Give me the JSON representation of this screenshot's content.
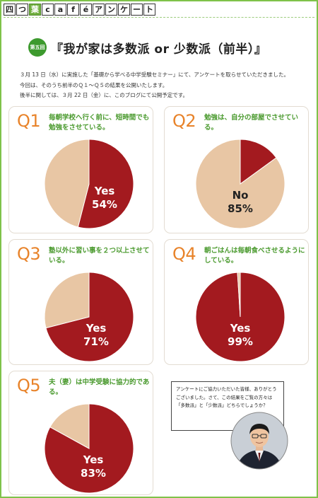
{
  "brand": {
    "chars": [
      "四",
      "つ",
      "葉",
      "c",
      "a",
      "f",
      "é",
      "ア",
      "ン",
      "ケ",
      "ー",
      "ト"
    ]
  },
  "title": {
    "badge": "第五回",
    "text": "『我が家は多数派 or 少数派（前半）』"
  },
  "intro": "３月 13 日（水）に実施した「基礎から学べる中学受験セミナー」にて、アンケートを取らせていただきました。\n今回は、そのうち前半のＱ１～Ｑ５の結果を公開いたします。\n後半に関しては、３月 22 日（金）に、このブログにて公開予定です。",
  "colors": {
    "yes": "#a31a1f",
    "no": "#e8c6a4",
    "accent": "#e8832a",
    "question": "#4a9a2e",
    "frame": "#7fc24a"
  },
  "questions": [
    {
      "no": "Q1",
      "text": "毎朝学校へ行く前に、短時間でも勉強をさせている。",
      "label": "Yes",
      "pct": "54%"
    },
    {
      "no": "Q2",
      "text": "勉強は、自分の部屋でさせている。",
      "label": "No",
      "pct": "85%"
    },
    {
      "no": "Q3",
      "text": "塾以外に習い事を２つ以上させている。",
      "label": "Yes",
      "pct": "71%"
    },
    {
      "no": "Q4",
      "text": "朝ごはんは毎朝食べさせるようにしている。",
      "label": "Yes",
      "pct": "99%"
    },
    {
      "no": "Q5",
      "text": "夫（妻）は中学受験に協力的である。",
      "label": "Yes",
      "pct": "83%"
    }
  ],
  "bubble": {
    "text": "アンケートにご協力いただいた皆様、ありがとうございました。さて、この結果をご覧の方々は「多数派」と「少数派」どちらでしょうか？"
  },
  "chart_data": [
    {
      "type": "pie",
      "title": "毎朝学校へ行く前に、短時間でも勉強をさせている。",
      "categories": [
        "Yes",
        "No"
      ],
      "values": [
        54,
        46
      ]
    },
    {
      "type": "pie",
      "title": "勉強は、自分の部屋でさせている。",
      "categories": [
        "Yes",
        "No"
      ],
      "values": [
        15,
        85
      ]
    },
    {
      "type": "pie",
      "title": "塾以外に習い事を２つ以上させている。",
      "categories": [
        "Yes",
        "No"
      ],
      "values": [
        71,
        29
      ]
    },
    {
      "type": "pie",
      "title": "朝ごはんは毎朝食べさせるようにしている。",
      "categories": [
        "Yes",
        "No"
      ],
      "values": [
        99,
        1
      ]
    },
    {
      "type": "pie",
      "title": "夫（妻）は中学受験に協力的である。",
      "categories": [
        "Yes",
        "No"
      ],
      "values": [
        83,
        17
      ]
    }
  ]
}
